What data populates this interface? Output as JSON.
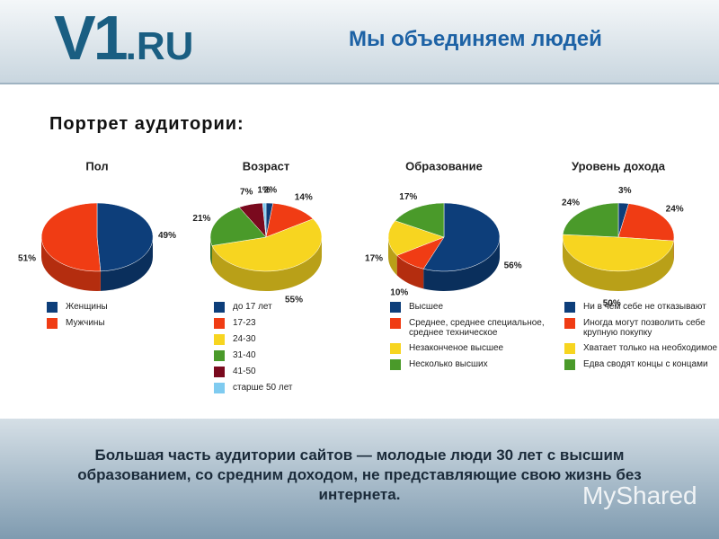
{
  "header": {
    "logo_main": "V1",
    "logo_suffix": ".RU",
    "slogan": "Мы объединяем людей"
  },
  "subtitle": "Портрет аудитории:",
  "chart_data": [
    {
      "type": "pie",
      "title": "Пол",
      "categories": [
        "Женщины",
        "Мужчины"
      ],
      "values": [
        49,
        51
      ],
      "value_labels": [
        "49%",
        "51%"
      ],
      "colors": [
        "#0d3e7a",
        "#f03c14"
      ]
    },
    {
      "type": "pie",
      "title": "Возраст",
      "categories": [
        "до 17 лет",
        "17-23",
        "24-30",
        "31-40",
        "41-50",
        "старше 50 лет"
      ],
      "values": [
        2,
        14,
        55,
        21,
        7,
        1
      ],
      "value_labels": [
        "2%",
        "14%",
        "55%",
        "21%",
        "7%",
        "1%"
      ],
      "colors": [
        "#0d3e7a",
        "#f03c14",
        "#f7d520",
        "#4a9a2a",
        "#7a0a1e",
        "#7fcbf0"
      ]
    },
    {
      "type": "pie",
      "title": "Образование",
      "categories": [
        "Высшее",
        "Среднее, среднее специальное, среднее техническое",
        "Незаконченое высшее",
        "Несколько высших"
      ],
      "values": [
        56,
        10,
        17,
        17
      ],
      "value_labels": [
        "56%",
        "10%",
        "17%",
        "17%"
      ],
      "colors": [
        "#0d3e7a",
        "#f03c14",
        "#f7d520",
        "#4a9a2a"
      ]
    },
    {
      "type": "pie",
      "title": "Уровень дохода",
      "categories": [
        "Ни в чём себе не отказывают",
        "Иногда могут позволить себе крупную покупку",
        "Хватает только на необходимое",
        "Едва сводят концы с концами"
      ],
      "values": [
        3,
        24,
        50,
        24
      ],
      "value_labels": [
        "3%",
        "24%",
        "50%",
        "24%"
      ],
      "colors": [
        "#0d3e7a",
        "#f03c14",
        "#f7d520",
        "#4a9a2a"
      ]
    }
  ],
  "footer": {
    "text": "Большая часть аудитории сайтов — молодые люди 30 лет с высшим образованием, со средним доходом, не представляющие свою жизнь без интернета.",
    "watermark": "MyShared"
  }
}
